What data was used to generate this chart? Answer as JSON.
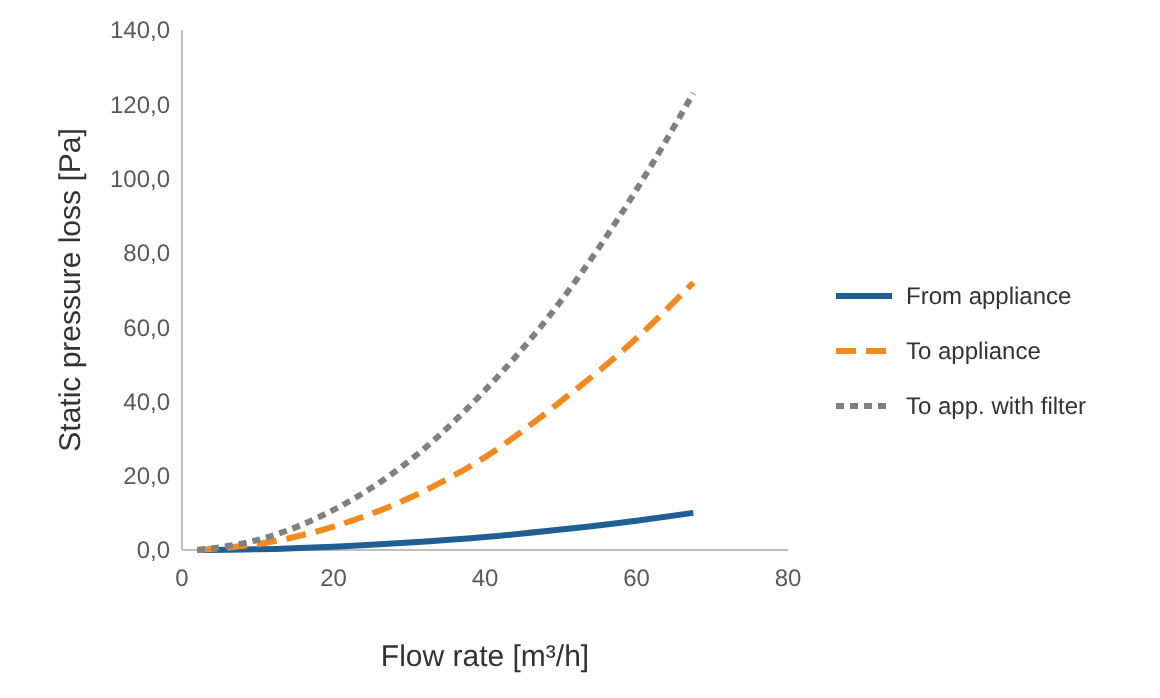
{
  "chart_data": {
    "type": "line",
    "xlabel": "Flow rate [m³/h]",
    "ylabel": "Static pressure loss [Pa]",
    "x": [
      2,
      10,
      20,
      30,
      40,
      50,
      60,
      67.5
    ],
    "series": [
      {
        "name": "From appliance",
        "color": "#1f5f94",
        "line_style": "solid",
        "values": [
          0,
          0.2,
          0.9,
          2,
          3.5,
          5.5,
          7.9,
          10
        ]
      },
      {
        "name": "To appliance",
        "color": "#f28a1e",
        "line_style": "dashed",
        "values": [
          0,
          1.6,
          6.3,
          14,
          25,
          40,
          57,
          72
        ]
      },
      {
        "name": "To app. with filter",
        "color": "#808080",
        "line_style": "dotted",
        "values": [
          0,
          2.7,
          10.8,
          24,
          43,
          67,
          97,
          123
        ]
      }
    ],
    "xlim": [
      0,
      80
    ],
    "xticks": [
      0,
      20,
      40,
      60,
      80
    ],
    "ylim": [
      0,
      140
    ],
    "yticks": [
      {
        "value": 0,
        "label": "0,0"
      },
      {
        "value": 20,
        "label": "20,0"
      },
      {
        "value": 40,
        "label": "40,0"
      },
      {
        "value": 60,
        "label": "60,0"
      },
      {
        "value": 80,
        "label": "80,0"
      },
      {
        "value": 100,
        "label": "100,0"
      },
      {
        "value": 120,
        "label": "120,0"
      },
      {
        "value": 140,
        "label": "140,0"
      }
    ],
    "grid": false,
    "legend": "right"
  }
}
